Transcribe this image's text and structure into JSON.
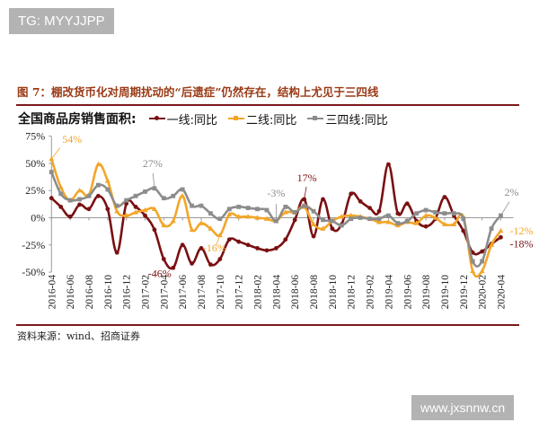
{
  "watermarks": {
    "top_left": "TG: MYYJJPP",
    "bottom_right": "www.jxsnnw.cn"
  },
  "figure_title": "图 7：棚改货币化对周期扰动的“后遗症”仍然存在，结构上尤见于三四线",
  "source": "资料来源：wind、招商证券",
  "chart_data": {
    "type": "line",
    "title": "全国商品房销售面积:",
    "x_tick_labels": [
      "2016-04",
      "2016-06",
      "2016-08",
      "2016-10",
      "2016-12",
      "2017-02",
      "2017-04",
      "2017-06",
      "2017-08",
      "2017-10",
      "2017-12",
      "2018-02",
      "2018-04",
      "2018-06",
      "2018-08",
      "2018-10",
      "2018-12",
      "2019-02",
      "2019-04",
      "2019-06",
      "2019-08",
      "2019-10",
      "2019-12",
      "2020-02",
      "2020-04"
    ],
    "x_start": "2016-04",
    "x_end": "2020-04",
    "y_ticks": [
      "75%",
      "50%",
      "25%",
      "0%",
      "-25%",
      "-50%"
    ],
    "ylim": [
      -50,
      75
    ],
    "grid": false,
    "legend_position": "top",
    "series": [
      {
        "name": "一线:同比",
        "color": "#7a1012",
        "marker": "circle",
        "values": [
          18,
          10,
          1,
          12,
          8,
          20,
          8,
          -32,
          13,
          10,
          2,
          -11,
          -38,
          -46,
          -25,
          -42,
          -28,
          -43,
          -38,
          -20,
          -22,
          -25,
          -28,
          -30,
          -28,
          -20,
          -2,
          17,
          -17,
          17,
          -10,
          -6,
          22,
          15,
          9,
          6,
          49,
          4,
          13,
          -3,
          -8,
          -1,
          19,
          2,
          -12,
          -32,
          -31,
          -24,
          -18
        ]
      },
      {
        "name": "二线:同比",
        "color": "#f2a629",
        "marker": "triangle",
        "values": [
          54,
          28,
          16,
          25,
          21,
          49,
          34,
          6,
          2,
          5,
          7,
          8,
          -7,
          -3,
          20,
          -11,
          -5,
          -10,
          -16,
          3,
          1,
          1,
          0,
          -1,
          -3,
          5,
          5,
          10,
          -6,
          -10,
          -3,
          1,
          2,
          1,
          -1,
          -4,
          -4,
          -7,
          -4,
          -5,
          2,
          0,
          -6,
          -6,
          1,
          -49,
          -49,
          -25,
          -12
        ]
      },
      {
        "name": "三四线:同比",
        "color": "#8c8c8c",
        "marker": "square",
        "values": [
          42,
          22,
          16,
          17,
          20,
          30,
          26,
          11,
          16,
          20,
          24,
          27,
          18,
          20,
          26,
          11,
          11,
          4,
          -1,
          8,
          10,
          9,
          8,
          7,
          -3,
          10,
          5,
          11,
          6,
          -2,
          -3,
          -7,
          -1,
          0,
          -1,
          -1,
          2,
          -5,
          -3,
          4,
          7,
          5,
          4,
          4,
          -1,
          -40,
          -40,
          -10,
          2
        ]
      }
    ],
    "annotations": [
      {
        "text": "54%",
        "series": "二线:同比",
        "x": "2016-04"
      },
      {
        "text": "27%",
        "series": "三四线:同比",
        "x": "2017-03"
      },
      {
        "text": "-46%",
        "series": "一线:同比",
        "x": "2017-05"
      },
      {
        "text": "-16%",
        "series": "二线:同比",
        "x": "2017-10"
      },
      {
        "text": "-3%",
        "series": "三四线:同比",
        "x": "2018-04"
      },
      {
        "text": "17%",
        "series": "一线:同比",
        "x": "2018-07"
      },
      {
        "text": "2%",
        "series": "三四线:同比",
        "x": "2020-04"
      },
      {
        "text": "-12%",
        "series": "二线:同比",
        "x": "2020-04"
      },
      {
        "text": "-18%",
        "series": "一线:同比",
        "x": "2020-04"
      }
    ]
  }
}
